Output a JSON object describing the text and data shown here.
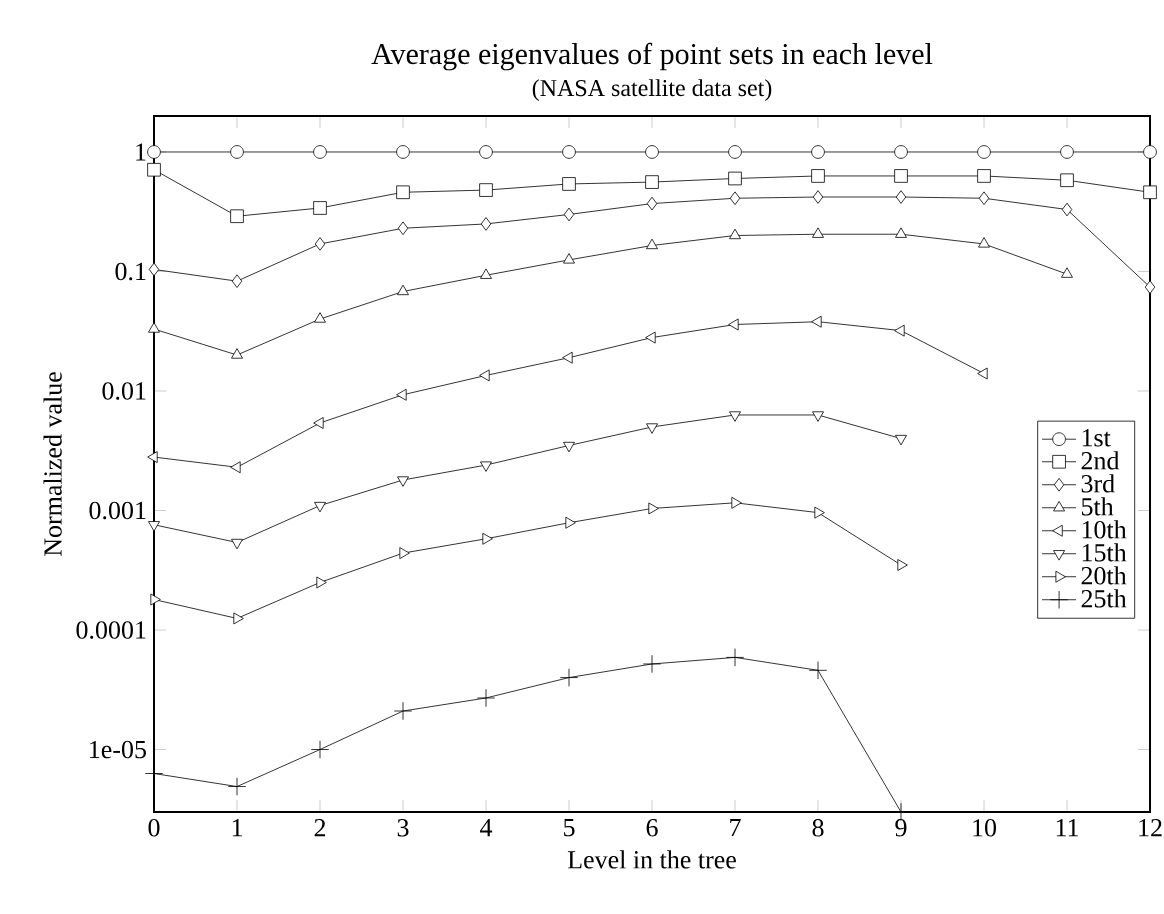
{
  "chart_data": {
    "type": "line",
    "title": "Average eigenvalues of point sets in each level",
    "subtitle": "(NASA satellite data set)",
    "xlabel": "Level in the tree",
    "ylabel": "Normalized value",
    "log": "y",
    "xlim": [
      0,
      12
    ],
    "xticks": [
      0,
      1,
      2,
      3,
      4,
      5,
      6,
      7,
      8,
      9,
      10,
      11,
      12
    ],
    "ylim": [
      3e-06,
      2
    ],
    "yticks": [
      1,
      0.1,
      0.01,
      0.001,
      0.0001,
      {
        "value": 1e-05,
        "label": "1e-05"
      }
    ],
    "legend": "right",
    "grid": false,
    "line_style": "solid",
    "x": [
      0,
      1,
      2,
      3,
      4,
      5,
      6,
      7,
      8,
      9,
      10,
      11,
      12
    ],
    "series": [
      {
        "name": "1st",
        "color": "#000000",
        "marker": "circle",
        "values": [
          1,
          1,
          1,
          1,
          1,
          1,
          1,
          1,
          1,
          1,
          1,
          1,
          1
        ]
      },
      {
        "name": "2nd",
        "color": "#000000",
        "marker": "square",
        "values": [
          0.71,
          0.29,
          0.34,
          0.46,
          0.48,
          0.54,
          0.56,
          0.6,
          0.63,
          0.63,
          0.63,
          0.58,
          0.46
        ]
      },
      {
        "name": "3rd",
        "color": "#000000",
        "marker": "diamond",
        "values": [
          0.104,
          0.083,
          0.17,
          0.23,
          0.25,
          0.3,
          0.37,
          0.41,
          0.42,
          0.42,
          0.41,
          0.33,
          0.074
        ]
      },
      {
        "name": "5th",
        "color": "#000000",
        "marker": "triangle",
        "values": [
          0.033,
          0.02,
          0.04,
          0.068,
          0.093,
          0.125,
          0.165,
          0.2,
          0.205,
          0.205,
          0.17,
          0.095,
          null
        ]
      },
      {
        "name": "10th",
        "color": "#000000",
        "marker": "triangle-left",
        "values": [
          0.0028,
          0.0023,
          0.0054,
          0.0093,
          0.0135,
          0.019,
          0.028,
          0.036,
          0.038,
          0.032,
          0.014,
          null,
          null
        ]
      },
      {
        "name": "15th",
        "color": "#000000",
        "marker": "triangle-down",
        "values": [
          0.00076,
          0.00054,
          0.0011,
          0.0018,
          0.0024,
          0.0035,
          0.005,
          0.0063,
          0.0063,
          0.004,
          null,
          null,
          null
        ]
      },
      {
        "name": "20th",
        "color": "#000000",
        "marker": "triangle-right",
        "values": [
          0.00018,
          0.000125,
          0.00025,
          0.00044,
          0.00058,
          0.00079,
          0.00104,
          0.00116,
          0.00096,
          0.00035,
          null,
          null,
          null
        ]
      },
      {
        "name": "25th",
        "color": "#000000",
        "marker": "cross",
        "values": [
          6.3e-06,
          4.9e-06,
          1e-05,
          2.1e-05,
          2.7e-05,
          4e-05,
          5.2e-05,
          5.9e-05,
          4.6e-05,
          3e-06,
          null,
          null,
          null
        ]
      }
    ]
  }
}
